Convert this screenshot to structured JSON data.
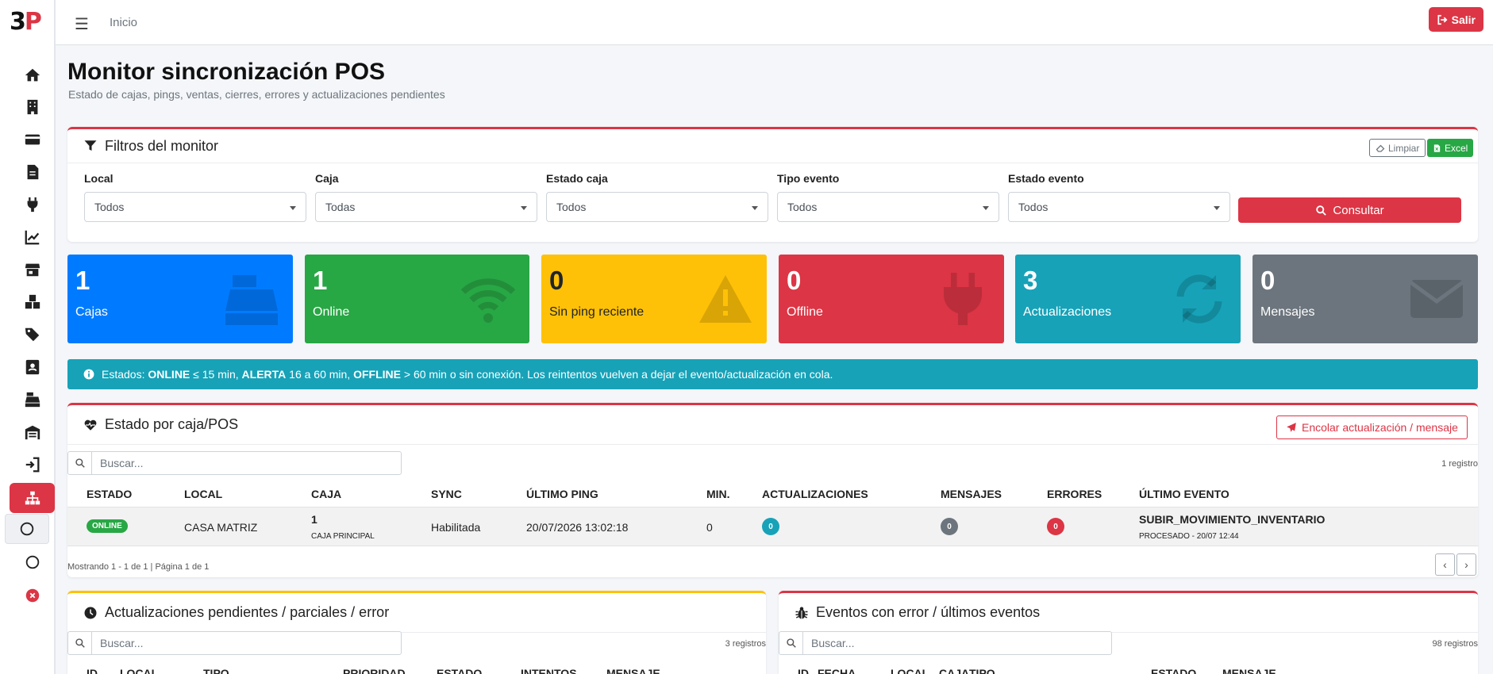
{
  "app": {
    "logo_a": "3",
    "logo_b": "P"
  },
  "topbar": {
    "breadcrumb": "Inicio",
    "logout_label": "Salir"
  },
  "page": {
    "title": "Monitor sincronización POS",
    "subtitle": "Estado de cajas, pings, ventas, cierres, errores y actualizaciones pendientes"
  },
  "filters": {
    "title": "Filtros del monitor",
    "clear_label": "Limpiar",
    "excel_label": "Excel",
    "fields": [
      {
        "label": "Local",
        "value": "Todos"
      },
      {
        "label": "Caja",
        "value": "Todas"
      },
      {
        "label": "Estado caja",
        "value": "Todos"
      },
      {
        "label": "Tipo evento",
        "value": "Todos"
      },
      {
        "label": "Estado evento",
        "value": "Todos"
      }
    ],
    "submit_label": "Consultar"
  },
  "stats": [
    {
      "value": "1",
      "label": "Cajas",
      "color": "#007bff",
      "icon": "cash-register-icon"
    },
    {
      "value": "1",
      "label": "Online",
      "color": "#28a745",
      "icon": "wifi-icon"
    },
    {
      "value": "0",
      "label": "Sin ping reciente",
      "color": "#ffc107",
      "icon": "warning-icon"
    },
    {
      "value": "0",
      "label": "Offline",
      "color": "#dc3545",
      "icon": "plug-icon"
    },
    {
      "value": "3",
      "label": "Actualizaciones",
      "color": "#17a2b8",
      "icon": "sync-icon"
    },
    {
      "value": "0",
      "label": "Mensajes",
      "color": "#6c757d",
      "icon": "envelope-icon"
    }
  ],
  "notice": {
    "p1": "Estados: ",
    "b1": "ONLINE",
    "p2": " ≤ 15 min, ",
    "b2": "ALERTA",
    "p3": " 16 a 60 min, ",
    "b3": "OFFLINE",
    "p4": " > 60 min o sin conexión. Los reintentos vuelven a dejar el evento/actualización en cola."
  },
  "status_panel": {
    "title": "Estado por caja/POS",
    "enqueue_label": "Encolar actualización / mensaje",
    "search_placeholder": "Buscar...",
    "count": "1 registro",
    "columns": [
      "ESTADO",
      "LOCAL",
      "CAJA",
      "SYNC",
      "ÚLTIMO PING",
      "MIN.",
      "ACTUALIZACIONES",
      "MENSAJES",
      "ERRORES",
      "ÚLTIMO EVENTO"
    ],
    "row": {
      "estado": "ONLINE",
      "local": "CASA MATRIZ",
      "caja_num": "1",
      "caja_name": "CAJA PRINCIPAL",
      "sync": "Habilitada",
      "ultimo_ping": "20/07/2026 13:02:18",
      "min": "0",
      "actualizaciones": "0",
      "mensajes": "0",
      "errores": "0",
      "evento": "SUBIR_MOVIMIENTO_INVENTARIO",
      "evento_detalle": "PROCESADO - 20/07 12:44"
    },
    "footer": "Mostrando 1 - 1 de 1 | Página 1 de 1"
  },
  "updates_panel": {
    "title": "Actualizaciones pendientes / parciales / error",
    "search_placeholder": "Buscar...",
    "count": "3 registros",
    "columns": [
      "ID",
      "LOCAL",
      "TIPO",
      "PRIORIDAD",
      "ESTADO",
      "INTENTOS",
      "MENSAJE"
    ]
  },
  "events_panel": {
    "title": "Eventos con error / últimos eventos",
    "search_placeholder": "Buscar...",
    "count": "98 registros",
    "columns": [
      "ID",
      "FECHA",
      "LOCAL",
      "CAJA",
      "TIPO",
      "ESTADO",
      "MENSAJE"
    ]
  }
}
